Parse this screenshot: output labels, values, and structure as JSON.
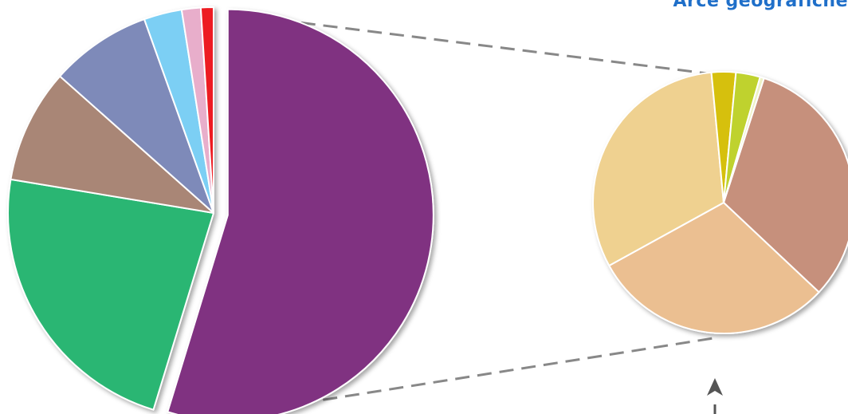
{
  "chart_data": {
    "type": "pie",
    "title": "Arce geografiche",
    "main_pie": {
      "slices": [
        {
          "value": 55.0,
          "color": "#803381",
          "exploded": true
        },
        {
          "value": 23.0,
          "color": "#2bb673"
        },
        {
          "value": 9.0,
          "color": "#a98676"
        },
        {
          "value": 8.0,
          "color": "#7e8ab9"
        },
        {
          "value": 3.0,
          "color": "#7ccff4"
        },
        {
          "value": 1.5,
          "color": "#e8aecb"
        },
        {
          "value": 1.0,
          "color": "#ed1c24"
        }
      ]
    },
    "detail_pie": {
      "detail_of_slice": 0,
      "slices": [
        {
          "value": 32.0,
          "color": "#c6907b"
        },
        {
          "value": 30.0,
          "color": "#ebbf91"
        },
        {
          "value": 31.5,
          "color": "#efd190"
        },
        {
          "value": 3.0,
          "color": "#d6c00b"
        },
        {
          "value": 3.0,
          "color": "#bfd22f"
        },
        {
          "value": 0.5,
          "color": "#eef1c5"
        }
      ]
    },
    "connector_color": "#888888"
  }
}
